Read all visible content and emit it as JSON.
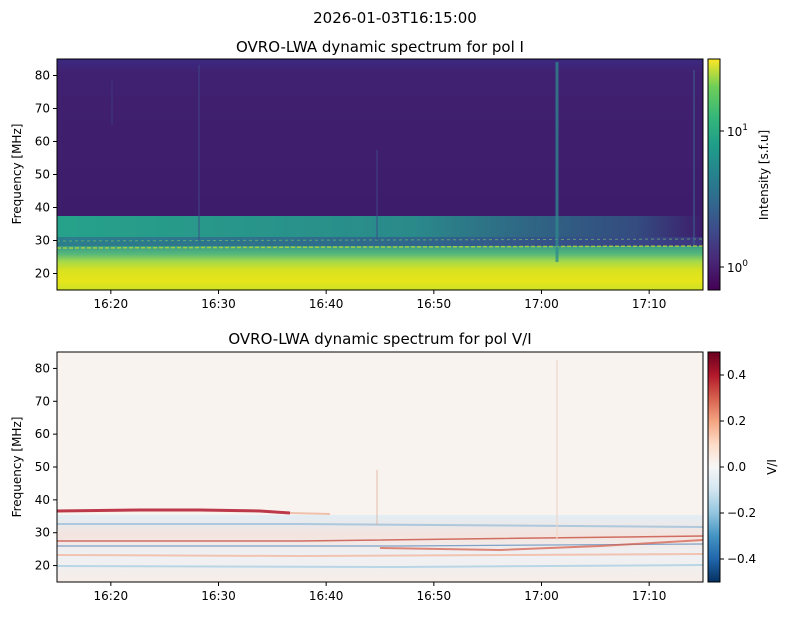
{
  "figure": {
    "suptitle": "2026-01-03T16:15:00"
  },
  "chart_data": [
    {
      "type": "heatmap",
      "title": "OVRO-LWA dynamic spectrum for pol I",
      "xlabel": "",
      "ylabel": "Frequency [MHz]",
      "x_tick_labels": [
        "16:20",
        "16:30",
        "16:40",
        "16:50",
        "17:00",
        "17:10"
      ],
      "x_tick_minutes": [
        20,
        30,
        40,
        50,
        60,
        70
      ],
      "xlim_minutes": [
        15,
        75
      ],
      "y_ticks": [
        20,
        30,
        40,
        50,
        60,
        70,
        80
      ],
      "ylim": [
        15,
        85
      ],
      "colormap": "viridis",
      "scale": "log",
      "colorbar": {
        "label": "Intensity [s.f.u]",
        "range": [
          0.7,
          30
        ],
        "tick_labels": [
          {
            "value": 10,
            "base": "10",
            "exp": "1"
          },
          {
            "value": 1,
            "base": "10",
            "exp": "0"
          }
        ]
      },
      "features": [
        {
          "desc": "bright band",
          "freq_range": [
            15,
            25
          ],
          "level": "high"
        },
        {
          "desc": "emission 25-37 MHz fading after 16:28",
          "freq_range": [
            25,
            37
          ],
          "level": "medium"
        },
        {
          "desc": "vertical burst",
          "time_minutes": 61.5,
          "level": "medium"
        }
      ]
    },
    {
      "type": "heatmap",
      "title": "OVRO-LWA dynamic spectrum for pol V/I",
      "xlabel": "",
      "ylabel": "Frequency [MHz]",
      "x_tick_labels": [
        "16:20",
        "16:30",
        "16:40",
        "16:50",
        "17:00",
        "17:10"
      ],
      "x_tick_minutes": [
        20,
        30,
        40,
        50,
        60,
        70
      ],
      "xlim_minutes": [
        15,
        75
      ],
      "y_ticks": [
        20,
        30,
        40,
        50,
        60,
        70,
        80
      ],
      "ylim": [
        15,
        85
      ],
      "colormap": "RdBu_r",
      "scale": "linear",
      "colorbar": {
        "label": "V/I",
        "range": [
          -0.5,
          0.5
        ],
        "tick_labels": [
          "0.4",
          "0.2",
          "0.0",
          "−0.2",
          "−0.4"
        ],
        "tick_values": [
          0.4,
          0.2,
          0.0,
          -0.2,
          -0.4
        ]
      },
      "features": [
        {
          "desc": "positive line",
          "freq": 37,
          "time_range_minutes": [
            15,
            38
          ],
          "level": 0.35
        },
        {
          "desc": "mixed polarization band",
          "freq_range": [
            17,
            32
          ],
          "level": "mixed"
        }
      ]
    }
  ]
}
